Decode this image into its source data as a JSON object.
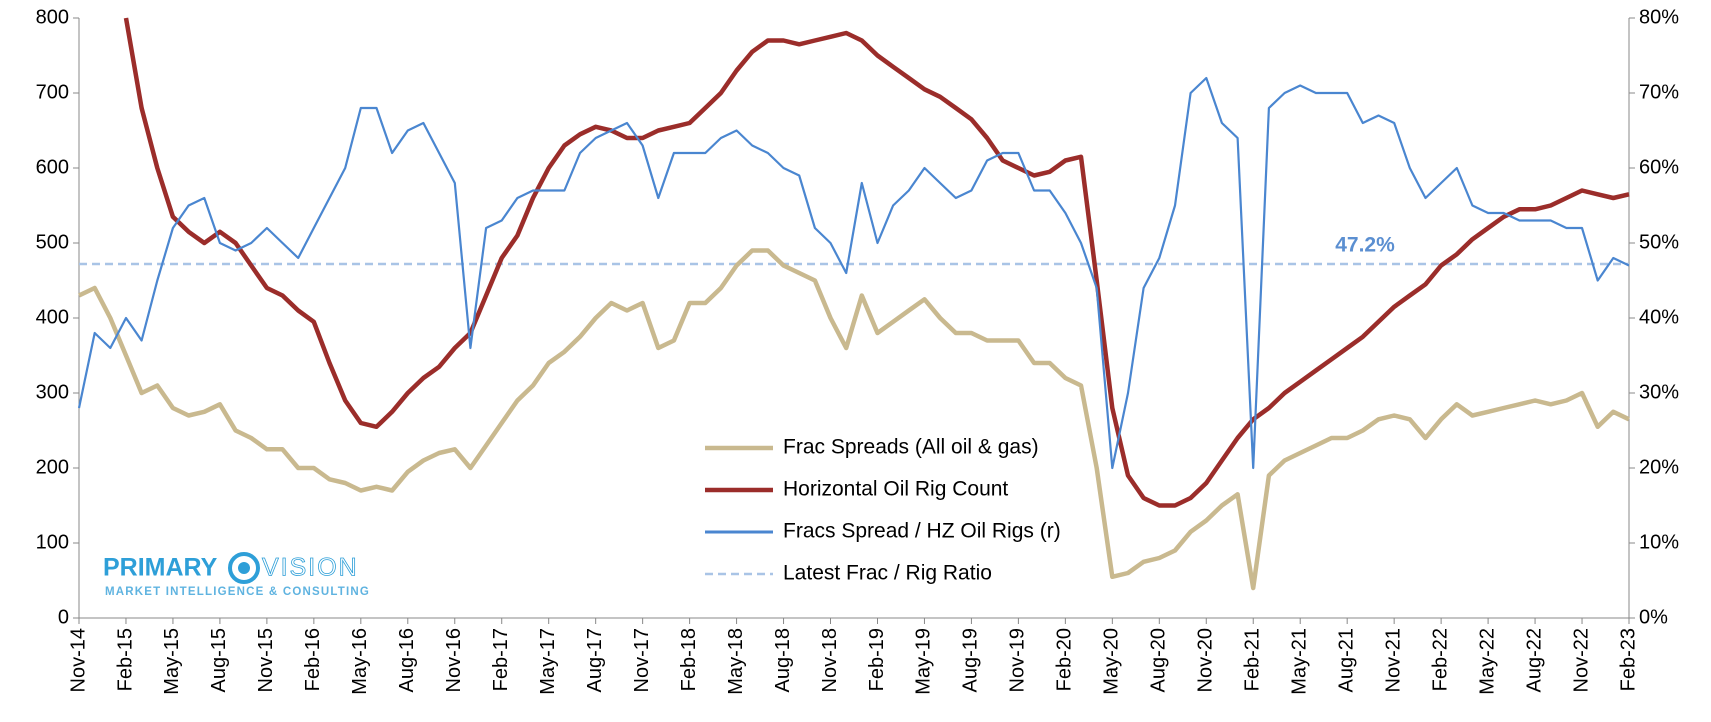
{
  "chart_data": {
    "type": "line",
    "categories": [
      "Nov-14",
      null,
      null,
      "Feb-15",
      null,
      null,
      "May-15",
      null,
      null,
      "Aug-15",
      null,
      null,
      "Nov-15",
      null,
      null,
      "Feb-16",
      null,
      null,
      "May-16",
      null,
      null,
      "Aug-16",
      null,
      null,
      "Nov-16",
      null,
      null,
      "Feb-17",
      null,
      null,
      "May-17",
      null,
      null,
      "Aug-17",
      null,
      null,
      "Nov-17",
      null,
      null,
      "Feb-18",
      null,
      null,
      "May-18",
      null,
      null,
      "Aug-18",
      null,
      null,
      "Nov-18",
      null,
      null,
      "Feb-19",
      null,
      null,
      "May-19",
      null,
      null,
      "Aug-19",
      null,
      null,
      "Nov-19",
      null,
      null,
      "Feb-20",
      null,
      null,
      "May-20",
      null,
      null,
      "Aug-20",
      null,
      null,
      "Nov-20",
      null,
      null,
      "Feb-21",
      null,
      null,
      "May-21",
      null,
      null,
      "Aug-21",
      null,
      null,
      "Nov-21",
      null,
      null,
      "Feb-22",
      null,
      null,
      "May-22",
      null,
      null,
      "Aug-22",
      null,
      null,
      "Nov-22",
      null,
      null,
      "Feb-23"
    ],
    "series": [
      {
        "name": "Frac Spreads (All oil & gas)",
        "color": "#c9b98f",
        "width": 4.5,
        "values": [
          430,
          440,
          400,
          350,
          300,
          310,
          280,
          270,
          275,
          285,
          250,
          240,
          225,
          225,
          200,
          200,
          185,
          180,
          170,
          175,
          170,
          195,
          210,
          220,
          225,
          200,
          230,
          260,
          290,
          310,
          340,
          355,
          375,
          400,
          420,
          410,
          420,
          360,
          370,
          420,
          420,
          440,
          470,
          490,
          490,
          470,
          460,
          450,
          400,
          360,
          430,
          380,
          395,
          410,
          425,
          400,
          380,
          380,
          370,
          370,
          370,
          340,
          340,
          320,
          310,
          200,
          55,
          60,
          75,
          80,
          90,
          115,
          130,
          150,
          165,
          40,
          190,
          210,
          220,
          230,
          240,
          240,
          250,
          265,
          270,
          265,
          240,
          265,
          285,
          270,
          275,
          280,
          285,
          290,
          285,
          290,
          300,
          255,
          275,
          265
        ]
      },
      {
        "name": "Horizontal Oil Rig Count",
        "color": "#9b2d2a",
        "width": 4.5,
        "values": [
          null,
          null,
          null,
          800,
          680,
          600,
          535,
          515,
          500,
          515,
          500,
          470,
          440,
          430,
          410,
          395,
          340,
          290,
          260,
          255,
          275,
          300,
          320,
          335,
          360,
          380,
          430,
          480,
          510,
          560,
          600,
          630,
          645,
          655,
          650,
          640,
          640,
          650,
          655,
          660,
          680,
          700,
          730,
          755,
          770,
          770,
          765,
          770,
          775,
          780,
          770,
          750,
          735,
          720,
          705,
          695,
          680,
          665,
          640,
          610,
          600,
          590,
          595,
          610,
          615,
          450,
          280,
          190,
          160,
          150,
          150,
          160,
          180,
          210,
          240,
          265,
          280,
          300,
          315,
          330,
          345,
          360,
          375,
          395,
          415,
          430,
          445,
          470,
          485,
          505,
          520,
          535,
          545,
          545,
          550,
          560,
          570,
          565,
          560,
          565
        ]
      },
      {
        "name": "Fracs Spread / HZ Oil Rigs (r)",
        "color": "#4a86d0",
        "width": 2.2,
        "axis": "y2",
        "values": [
          28,
          38,
          36,
          40,
          37,
          45,
          52,
          55,
          56,
          50,
          49,
          50,
          52,
          50,
          48,
          52,
          56,
          60,
          68,
          68,
          62,
          65,
          66,
          62,
          58,
          36,
          52,
          53,
          56,
          57,
          57,
          57,
          62,
          64,
          65,
          66,
          63,
          56,
          62,
          62,
          62,
          64,
          65,
          63,
          62,
          60,
          59,
          52,
          50,
          46,
          58,
          50,
          55,
          57,
          60,
          58,
          56,
          57,
          61,
          62,
          62,
          57,
          57,
          54,
          50,
          44,
          20,
          30,
          44,
          48,
          55,
          70,
          72,
          66,
          64,
          20,
          68,
          70,
          71,
          70,
          70,
          70,
          66,
          67,
          66,
          60,
          56,
          58,
          60,
          55,
          54,
          54,
          53,
          53,
          53,
          52,
          52,
          45,
          48,
          47
        ]
      }
    ],
    "reference_line": {
      "name": "Latest Frac / Rig Ratio",
      "value": 47.2,
      "label": "47.2%",
      "axis": "y2",
      "color": "#a9c4e6"
    },
    "ylim": [
      0,
      800
    ],
    "yticks": [
      0,
      100,
      200,
      300,
      400,
      500,
      600,
      700,
      800
    ],
    "y2lim": [
      0,
      80
    ],
    "y2ticks": [
      {
        "value": 0,
        "label": "0%"
      },
      {
        "value": 10,
        "label": "10%"
      },
      {
        "value": 20,
        "label": "20%"
      },
      {
        "value": 30,
        "label": "30%"
      },
      {
        "value": 40,
        "label": "40%"
      },
      {
        "value": 50,
        "label": "50%"
      },
      {
        "value": 60,
        "label": "60%"
      },
      {
        "value": 70,
        "label": "70%"
      },
      {
        "value": 80,
        "label": "80%"
      }
    ],
    "logo": {
      "name_left": "PRIMARY",
      "name_right": "VISION",
      "tagline": "MARKET INTELLIGENCE & CONSULTING"
    }
  }
}
